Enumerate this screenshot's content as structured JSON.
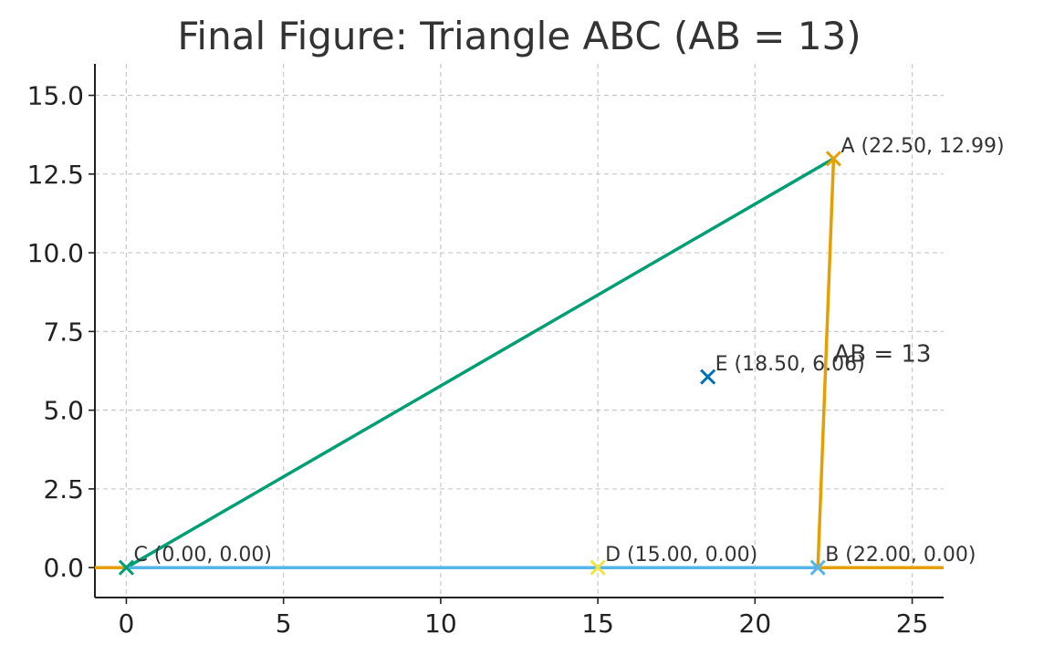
{
  "chart_data": {
    "type": "scatter",
    "title": "Final Figure: Triangle ABC (AB = 13)",
    "xlabel": "",
    "ylabel": "",
    "xlim": [
      -1,
      26
    ],
    "ylim": [
      -0.95,
      16
    ],
    "grid": true,
    "x_ticks": [
      0,
      5,
      10,
      15,
      20,
      25
    ],
    "x_tick_labels": [
      "0",
      "5",
      "10",
      "15",
      "20",
      "25"
    ],
    "y_ticks": [
      0,
      2.5,
      5,
      7.5,
      10,
      12.5,
      15
    ],
    "y_tick_labels": [
      "0.0",
      "2.5",
      "5.0",
      "7.5",
      "10.0",
      "12.5",
      "15.0"
    ],
    "colors": {
      "segment_CA": "#009E73",
      "segment_AB": "#E69F00",
      "segment_CB": "#56B4E9",
      "point_A": "#E69F00",
      "point_B": "#56B4E9",
      "point_C": "#009E73",
      "point_D": "#F0E442",
      "point_E": "#0072B2",
      "grid": "#c8c8c8",
      "text": "#333333"
    },
    "segments": [
      {
        "id": "CA",
        "x": [
          0,
          22.5
        ],
        "y": [
          0,
          12.99
        ],
        "color_key": "segment_CA"
      },
      {
        "id": "AB",
        "x": [
          22.0,
          22.5
        ],
        "y": [
          0,
          12.99
        ],
        "color_key": "segment_AB"
      },
      {
        "id": "CB",
        "x": [
          0,
          22.0
        ],
        "y": [
          0,
          0
        ],
        "color_key": "segment_CB"
      },
      {
        "id": "B-right",
        "x": [
          22.0,
          26
        ],
        "y": [
          0,
          0
        ],
        "color_key": "segment_AB"
      },
      {
        "id": "C-left",
        "x": [
          -1,
          0
        ],
        "y": [
          0,
          0
        ],
        "color_key": "segment_AB"
      }
    ],
    "points": [
      {
        "id": "A",
        "x": 22.5,
        "y": 12.99,
        "label": "A (22.50, 12.99)",
        "color_key": "point_A"
      },
      {
        "id": "B",
        "x": 22.0,
        "y": 0.0,
        "label": "B (22.00, 0.00)",
        "color_key": "point_B"
      },
      {
        "id": "C",
        "x": 0.0,
        "y": 0.0,
        "label": "C (0.00, 0.00)",
        "color_key": "point_C"
      },
      {
        "id": "D",
        "x": 15.0,
        "y": 0.0,
        "label": "D (15.00, 0.00)",
        "color_key": "point_D"
      },
      {
        "id": "E",
        "x": 18.5,
        "y": 6.06,
        "label": "E (18.50, 6.06)",
        "color_key": "point_E"
      }
    ],
    "annotations": [
      {
        "text": "AB = 13",
        "x": 22.5,
        "y": 6.8
      }
    ]
  }
}
